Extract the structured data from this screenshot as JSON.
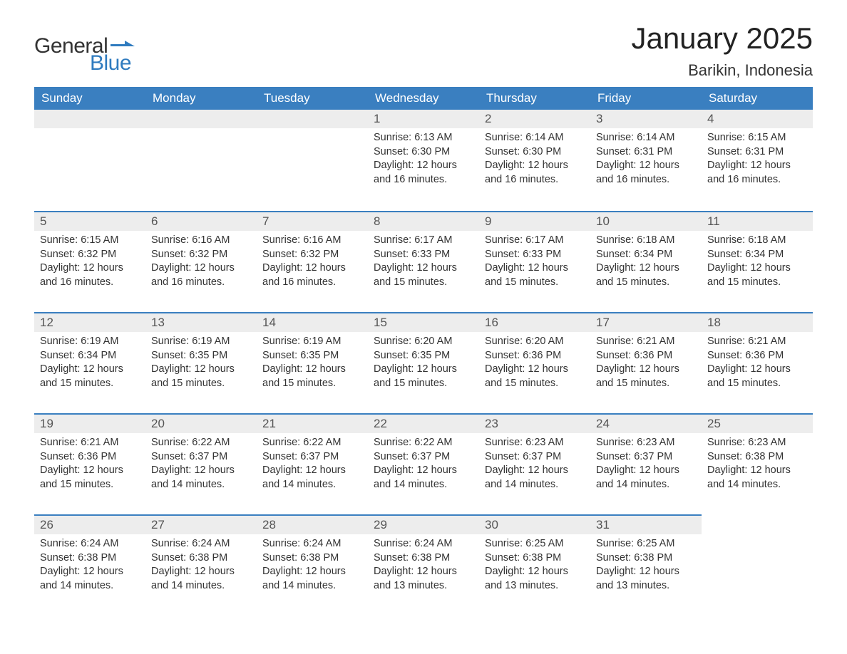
{
  "logo": {
    "text1": "General",
    "text2": "Blue",
    "flag_color": "#2f7bbf"
  },
  "title": "January 2025",
  "location": "Barikin, Indonesia",
  "colors": {
    "header_bg": "#3a7fc0",
    "header_text": "#ffffff",
    "daynum_bg": "#ededed",
    "row_border": "#3a7fc0",
    "body_text": "#333333",
    "page_bg": "#ffffff"
  },
  "fonts": {
    "title_size_pt": 32,
    "location_size_pt": 17,
    "header_size_pt": 13,
    "daynum_size_pt": 13,
    "body_size_pt": 11
  },
  "weekdays": [
    "Sunday",
    "Monday",
    "Tuesday",
    "Wednesday",
    "Thursday",
    "Friday",
    "Saturday"
  ],
  "weeks": [
    [
      null,
      null,
      null,
      {
        "n": "1",
        "sr": "6:13 AM",
        "ss": "6:30 PM",
        "dl": "12 hours and 16 minutes."
      },
      {
        "n": "2",
        "sr": "6:14 AM",
        "ss": "6:30 PM",
        "dl": "12 hours and 16 minutes."
      },
      {
        "n": "3",
        "sr": "6:14 AM",
        "ss": "6:31 PM",
        "dl": "12 hours and 16 minutes."
      },
      {
        "n": "4",
        "sr": "6:15 AM",
        "ss": "6:31 PM",
        "dl": "12 hours and 16 minutes."
      }
    ],
    [
      {
        "n": "5",
        "sr": "6:15 AM",
        "ss": "6:32 PM",
        "dl": "12 hours and 16 minutes."
      },
      {
        "n": "6",
        "sr": "6:16 AM",
        "ss": "6:32 PM",
        "dl": "12 hours and 16 minutes."
      },
      {
        "n": "7",
        "sr": "6:16 AM",
        "ss": "6:32 PM",
        "dl": "12 hours and 16 minutes."
      },
      {
        "n": "8",
        "sr": "6:17 AM",
        "ss": "6:33 PM",
        "dl": "12 hours and 15 minutes."
      },
      {
        "n": "9",
        "sr": "6:17 AM",
        "ss": "6:33 PM",
        "dl": "12 hours and 15 minutes."
      },
      {
        "n": "10",
        "sr": "6:18 AM",
        "ss": "6:34 PM",
        "dl": "12 hours and 15 minutes."
      },
      {
        "n": "11",
        "sr": "6:18 AM",
        "ss": "6:34 PM",
        "dl": "12 hours and 15 minutes."
      }
    ],
    [
      {
        "n": "12",
        "sr": "6:19 AM",
        "ss": "6:34 PM",
        "dl": "12 hours and 15 minutes."
      },
      {
        "n": "13",
        "sr": "6:19 AM",
        "ss": "6:35 PM",
        "dl": "12 hours and 15 minutes."
      },
      {
        "n": "14",
        "sr": "6:19 AM",
        "ss": "6:35 PM",
        "dl": "12 hours and 15 minutes."
      },
      {
        "n": "15",
        "sr": "6:20 AM",
        "ss": "6:35 PM",
        "dl": "12 hours and 15 minutes."
      },
      {
        "n": "16",
        "sr": "6:20 AM",
        "ss": "6:36 PM",
        "dl": "12 hours and 15 minutes."
      },
      {
        "n": "17",
        "sr": "6:21 AM",
        "ss": "6:36 PM",
        "dl": "12 hours and 15 minutes."
      },
      {
        "n": "18",
        "sr": "6:21 AM",
        "ss": "6:36 PM",
        "dl": "12 hours and 15 minutes."
      }
    ],
    [
      {
        "n": "19",
        "sr": "6:21 AM",
        "ss": "6:36 PM",
        "dl": "12 hours and 15 minutes."
      },
      {
        "n": "20",
        "sr": "6:22 AM",
        "ss": "6:37 PM",
        "dl": "12 hours and 14 minutes."
      },
      {
        "n": "21",
        "sr": "6:22 AM",
        "ss": "6:37 PM",
        "dl": "12 hours and 14 minutes."
      },
      {
        "n": "22",
        "sr": "6:22 AM",
        "ss": "6:37 PM",
        "dl": "12 hours and 14 minutes."
      },
      {
        "n": "23",
        "sr": "6:23 AM",
        "ss": "6:37 PM",
        "dl": "12 hours and 14 minutes."
      },
      {
        "n": "24",
        "sr": "6:23 AM",
        "ss": "6:37 PM",
        "dl": "12 hours and 14 minutes."
      },
      {
        "n": "25",
        "sr": "6:23 AM",
        "ss": "6:38 PM",
        "dl": "12 hours and 14 minutes."
      }
    ],
    [
      {
        "n": "26",
        "sr": "6:24 AM",
        "ss": "6:38 PM",
        "dl": "12 hours and 14 minutes."
      },
      {
        "n": "27",
        "sr": "6:24 AM",
        "ss": "6:38 PM",
        "dl": "12 hours and 14 minutes."
      },
      {
        "n": "28",
        "sr": "6:24 AM",
        "ss": "6:38 PM",
        "dl": "12 hours and 14 minutes."
      },
      {
        "n": "29",
        "sr": "6:24 AM",
        "ss": "6:38 PM",
        "dl": "12 hours and 13 minutes."
      },
      {
        "n": "30",
        "sr": "6:25 AM",
        "ss": "6:38 PM",
        "dl": "12 hours and 13 minutes."
      },
      {
        "n": "31",
        "sr": "6:25 AM",
        "ss": "6:38 PM",
        "dl": "12 hours and 13 minutes."
      },
      null
    ]
  ],
  "labels": {
    "sunrise": "Sunrise:",
    "sunset": "Sunset:",
    "daylight": "Daylight:"
  }
}
